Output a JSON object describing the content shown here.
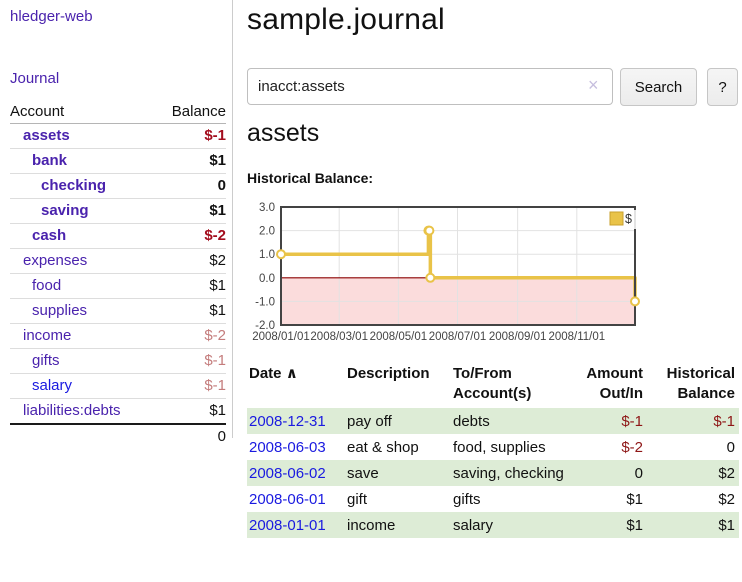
{
  "app": {
    "title": "hledger-web",
    "nav_journal": "Journal"
  },
  "sidebar": {
    "col_account": "Account",
    "col_balance": "Balance",
    "accounts": [
      {
        "name": "assets",
        "indent": 1,
        "bold": true,
        "balance": "$-1",
        "neg": true,
        "blue": false
      },
      {
        "name": "bank",
        "indent": 2,
        "bold": true,
        "balance": "$1",
        "neg": false,
        "blue": false
      },
      {
        "name": "checking",
        "indent": 3,
        "bold": true,
        "balance": "0",
        "neg": false,
        "blue": false
      },
      {
        "name": "saving",
        "indent": 3,
        "bold": true,
        "balance": "$1",
        "neg": false,
        "blue": false
      },
      {
        "name": "cash",
        "indent": 2,
        "bold": true,
        "balance": "$-2",
        "neg": true,
        "blue": false
      },
      {
        "name": "expenses",
        "indent": 1,
        "bold": false,
        "balance": "$2",
        "neg": false,
        "blue": false
      },
      {
        "name": "food",
        "indent": 2,
        "bold": false,
        "balance": "$1",
        "neg": false,
        "blue": false
      },
      {
        "name": "supplies",
        "indent": 2,
        "bold": false,
        "balance": "$1",
        "neg": false,
        "blue": false
      },
      {
        "name": "income",
        "indent": 1,
        "bold": false,
        "balance": "$-2",
        "neg": true,
        "blue": false
      },
      {
        "name": "gifts",
        "indent": 2,
        "bold": false,
        "balance": "$-1",
        "neg": true,
        "blue": false
      },
      {
        "name": "salary",
        "indent": 2,
        "bold": false,
        "balance": "$-1",
        "neg": true,
        "blue": true
      },
      {
        "name": "liabilities:debts",
        "indent": 1,
        "bold": false,
        "balance": "$1",
        "neg": false,
        "blue": false
      }
    ],
    "total": "0"
  },
  "header": {
    "title": "sample.journal"
  },
  "search": {
    "query": "inacct:assets",
    "clear_icon": "×",
    "button": "Search",
    "help_button": "?"
  },
  "account_page": {
    "title": "assets",
    "chart_label": "Historical Balance:"
  },
  "chart_data": {
    "type": "line",
    "title": "Historical Balance",
    "series": [
      {
        "name": "$",
        "step": true,
        "points": [
          [
            "2008-01-01",
            1
          ],
          [
            "2008-06-01",
            2
          ],
          [
            "2008-06-02",
            2
          ],
          [
            "2008-06-03",
            0
          ],
          [
            "2008-12-31",
            -1
          ]
        ]
      }
    ],
    "x_ticks": [
      "2008/01/01",
      "2008/03/01",
      "2008/05/01",
      "2008/07/01",
      "2008/09/01",
      "2008/11/01"
    ],
    "x_range": [
      "2008-01-01",
      "2008-12-31"
    ],
    "y_ticks": [
      3.0,
      2.0,
      1.0,
      0.0,
      -1.0,
      -2.0
    ],
    "ylim": [
      -2,
      3
    ],
    "grid": true,
    "legend_position": "top-right",
    "colors": {
      "line": "#e9c348",
      "line_edge": "#c9a02e",
      "marker_fill": "#ffffff",
      "negative_region": "#fbdcdc",
      "zero_line": "#8b0000",
      "grid": "#e2e2e2",
      "border": "#434343",
      "tick_text": "#444444"
    }
  },
  "register": {
    "columns": {
      "date": "Date",
      "sort_icon": "∧",
      "description": "Description",
      "account_l1": "To/From",
      "account_l2": "Account(s)",
      "amount_l1": "Amount",
      "amount_l2": "Out/In",
      "balance_l1": "Historical",
      "balance_l2": "Balance"
    },
    "rows": [
      {
        "date": "2008-12-31",
        "description": "pay off",
        "accounts": "debts",
        "amount": "$-1",
        "amount_neg": true,
        "balance": "$-1",
        "balance_neg": true
      },
      {
        "date": "2008-06-03",
        "description": "eat & shop",
        "accounts": "food, supplies",
        "amount": "$-2",
        "amount_neg": true,
        "balance": "0",
        "balance_neg": false
      },
      {
        "date": "2008-06-02",
        "description": "save",
        "accounts": "saving, checking",
        "amount": "0",
        "amount_neg": false,
        "balance": "$2",
        "balance_neg": false
      },
      {
        "date": "2008-06-01",
        "description": "gift",
        "accounts": "gifts",
        "amount": "$1",
        "amount_neg": false,
        "balance": "$2",
        "balance_neg": false
      },
      {
        "date": "2008-01-01",
        "description": "income",
        "accounts": "salary",
        "amount": "$1",
        "amount_neg": false,
        "balance": "$1",
        "balance_neg": false
      }
    ]
  }
}
